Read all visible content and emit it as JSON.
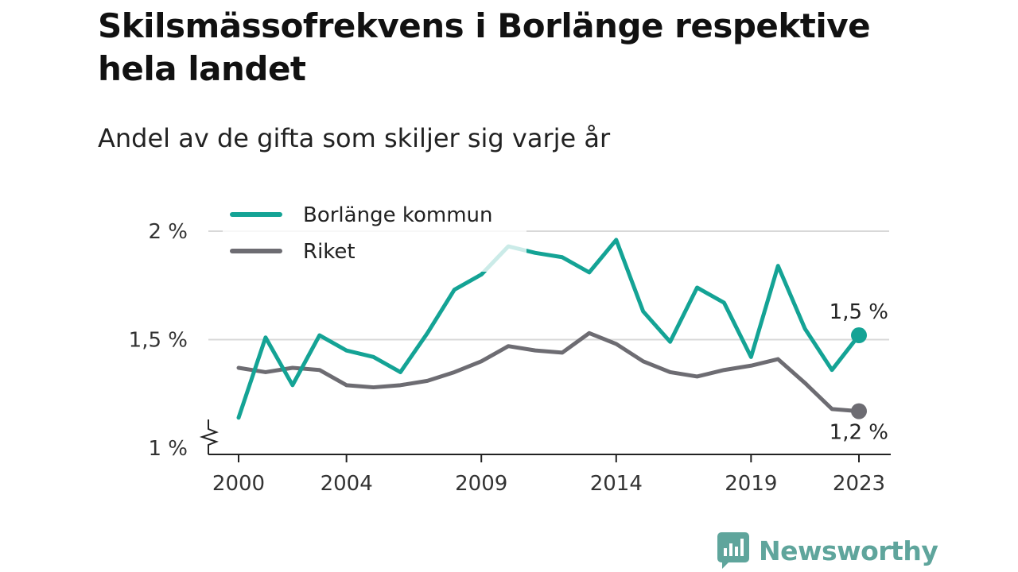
{
  "title": "Skilsmässofrekvens i Borlänge respektive hela landet",
  "subtitle": "Andel av de gifta som skiljer sig varje år",
  "brand": {
    "name": "Newsworthy",
    "icon": "newsworthy-logo-icon",
    "color": "#5fa59c"
  },
  "chart_data": {
    "type": "line",
    "title": "Skilsmässofrekvens i Borlänge respektive hela landet",
    "subtitle": "Andel av de gifta som skiljer sig varje år",
    "xlabel": "",
    "ylabel": "",
    "x": [
      2000,
      2001,
      2002,
      2003,
      2004,
      2005,
      2006,
      2007,
      2008,
      2009,
      2010,
      2011,
      2012,
      2013,
      2014,
      2015,
      2016,
      2017,
      2018,
      2019,
      2020,
      2021,
      2022,
      2023
    ],
    "x_ticks": [
      2000,
      2004,
      2009,
      2014,
      2019,
      2023
    ],
    "x_tick_labels": [
      "2000",
      "2004",
      "2009",
      "2014",
      "2019",
      "2023"
    ],
    "y_ticks": [
      1,
      1.5,
      2
    ],
    "y_tick_labels": [
      "1 %",
      "1,5 %",
      "2 %"
    ],
    "ylim": [
      1,
      2
    ],
    "y_axis_break": true,
    "grid": true,
    "legend_position": "top-left",
    "series": [
      {
        "name": "Borlänge kommun",
        "color": "#14a395",
        "values": [
          1.14,
          1.51,
          1.29,
          1.52,
          1.45,
          1.42,
          1.35,
          1.53,
          1.73,
          1.8,
          1.93,
          1.9,
          1.88,
          1.81,
          1.96,
          1.63,
          1.49,
          1.74,
          1.67,
          1.42,
          1.84,
          1.55,
          1.36,
          1.52
        ],
        "end_label": "1,5 %"
      },
      {
        "name": "Riket",
        "color": "#6d6c72",
        "values": [
          1.37,
          1.35,
          1.37,
          1.36,
          1.29,
          1.28,
          1.29,
          1.31,
          1.35,
          1.4,
          1.47,
          1.45,
          1.44,
          1.53,
          1.48,
          1.4,
          1.35,
          1.33,
          1.36,
          1.38,
          1.41,
          1.3,
          1.18,
          1.17
        ],
        "end_label": "1,2 %"
      }
    ]
  }
}
